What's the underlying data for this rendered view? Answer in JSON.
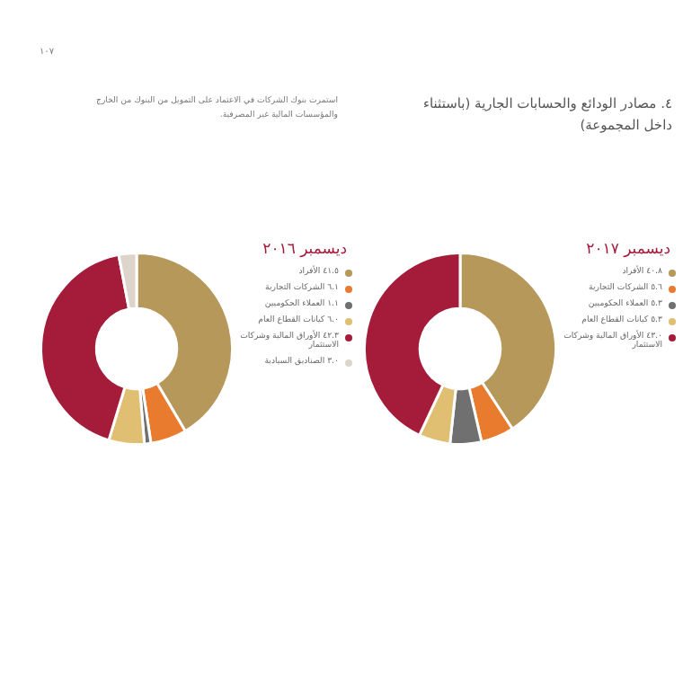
{
  "chart_data": [
    {
      "type": "donut",
      "title": "ديسمبر ٢٠١٧",
      "annotations": [
        "١٠٧",
        "٤. مصادر الودائع والحسابات الجارية (باستثناء داخل المجموعة)",
        "استمرت بنوك الشركات في الاعتماد على التمويل من البنوك من الخارج والمؤسسات المالية غير المصرفية."
      ],
      "categories": [
        "الأفراد",
        "الشركات التجارية",
        "العملاء الحكوميين",
        "كيانات القطاع العام",
        "الأوراق المالية وشركات الاستثمار"
      ],
      "values": [
        40.8,
        5.6,
        5.3,
        5.3,
        43.0
      ],
      "colors": [
        "#b5985a",
        "#e87b2e",
        "#707070",
        "#e0bf72",
        "#a51c3a"
      ],
      "value_labels": [
        "٤٠.٨",
        "٥.٦",
        "٥.٣",
        "٥.٣",
        "٤٣.٠"
      ],
      "legend": "top right"
    },
    {
      "type": "donut",
      "title": "ديسمبر ٢٠١٦",
      "categories": [
        "الأفراد",
        "الشركات التجارية",
        "العملاء الحكوميين",
        "كيانات القطاع العام",
        "الأوراق المالية وشركات الاستثمار",
        "الصناديق السيادية"
      ],
      "values": [
        41.5,
        6.1,
        1.1,
        6.0,
        42.3,
        3.0
      ],
      "colors": [
        "#b5985a",
        "#e87b2e",
        "#707070",
        "#e0bf72",
        "#a51c3a",
        "#ddd5cc"
      ],
      "value_labels": [
        "٤١.٥",
        "٦.١",
        "١.١",
        "٦.٠",
        "٤٢.٣",
        "٣.٠"
      ],
      "legend": "top right"
    }
  ]
}
